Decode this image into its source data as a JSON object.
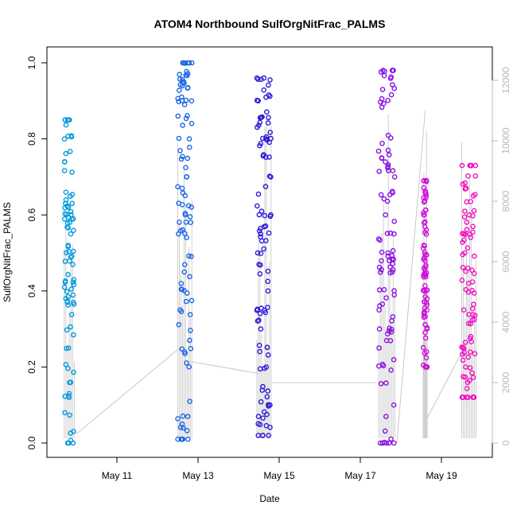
{
  "chart_data": {
    "type": "scatter",
    "title": "ATOM4 Northbound SulfOrgNitFrac_PALMS",
    "xlabel": "Date",
    "ylabel": "SulfOrgNitFrac_PALMS",
    "x_ticks": [
      "May 11",
      "May 13",
      "May 15",
      "May 17",
      "May 19"
    ],
    "y_ticks": [
      "0.0",
      "0.2",
      "0.4",
      "0.6",
      "0.8",
      "1.0"
    ],
    "y2_ticks": [
      "0",
      "2000",
      "4000",
      "6000",
      "8000",
      "10000",
      "12000"
    ],
    "ylim": [
      0,
      1
    ],
    "y2lim": [
      0,
      12000
    ],
    "secondary_series": {
      "name": "",
      "color": "#c8c8c8",
      "segments": [
        {
          "x": [
            "May 10",
            "May 12.6"
          ],
          "y": [
            300,
            3200
          ]
        },
        {
          "x": [
            "May 12.8",
            "May 14.5"
          ],
          "y": [
            2700,
            2300
          ]
        },
        {
          "x": [
            "May 14.8",
            "May 17.4"
          ],
          "y": [
            2000,
            2000
          ]
        },
        {
          "x": [
            "May 17.9",
            "May 18.6"
          ],
          "y": [
            0,
            11000
          ]
        },
        {
          "x": [
            "May 18.6",
            "May 19.5"
          ],
          "y": [
            700,
            3000
          ]
        }
      ]
    },
    "series": [
      {
        "name": "",
        "color": "#0099dd",
        "x_range": [
          "May 9.7",
          "May 9.95"
        ],
        "sample_values": [
          0.85,
          0.74,
          0.62,
          0.6,
          0.55,
          0.43,
          0.37,
          0.25,
          0.13,
          0.0
        ]
      },
      {
        "name": "",
        "color": "#1a66e6",
        "x_range": [
          "May 12.5",
          "May 12.85"
        ],
        "sample_values": [
          1.0,
          0.95,
          0.9,
          0.8,
          0.7,
          0.6,
          0.55,
          0.45,
          0.35,
          0.24,
          0.05,
          0.01
        ]
      },
      {
        "name": "",
        "color": "#2a18d8",
        "x_range": [
          "May 14.45",
          "May 14.8"
        ],
        "sample_values": [
          0.96,
          0.9,
          0.8,
          0.7,
          0.6,
          0.55,
          0.5,
          0.4,
          0.3,
          0.2,
          0.1,
          0.02
        ]
      },
      {
        "name": "",
        "color": "#8a10e0",
        "x_range": [
          "May 17.45",
          "May 17.85"
        ],
        "sample_values": [
          0.98,
          0.93,
          0.77,
          0.7,
          0.6,
          0.55,
          0.5,
          0.45,
          0.35,
          0.25,
          0.1,
          0.0
        ]
      },
      {
        "name": "",
        "color": "#cc10d8",
        "x_range": [
          "May 18.55",
          "May 18.65"
        ],
        "sample_values": [
          0.69,
          0.6,
          0.52,
          0.46,
          0.4,
          0.35,
          0.3,
          0.2
        ]
      },
      {
        "name": "",
        "color": "#ee10c0",
        "x_range": [
          "May 19.5",
          "May 19.85"
        ],
        "sample_values": [
          0.73,
          0.65,
          0.6,
          0.55,
          0.5,
          0.42,
          0.35,
          0.28,
          0.2,
          0.12
        ]
      }
    ],
    "grid": false,
    "legend": "none"
  }
}
